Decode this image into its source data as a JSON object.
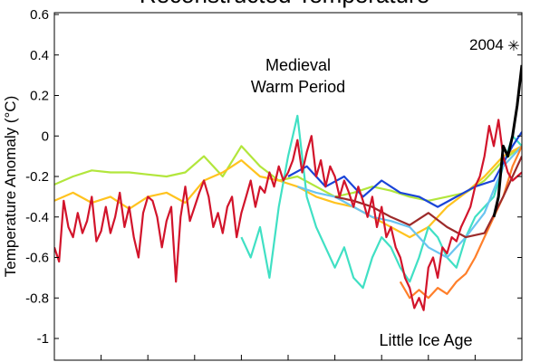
{
  "chart_data": {
    "type": "line",
    "title": "Reconstructed Temperature",
    "ylabel": "Temperature Anomaly (°C)",
    "xlabel": "",
    "xlim": [
      0,
      1000
    ],
    "ylim": [
      -1.1,
      0.6
    ],
    "y_ticks": [
      "0.6",
      "0.4",
      "0.2",
      "0",
      "-0.2",
      "-0.4",
      "-0.6",
      "-0.8",
      "-1"
    ],
    "y_tick_values": [
      0.6,
      0.4,
      0.2,
      0.0,
      -0.2,
      -0.4,
      -0.6,
      -0.8,
      -1.0
    ],
    "x_tick_values": [
      0,
      100,
      200,
      300,
      400,
      500,
      600,
      700,
      800,
      900,
      1000
    ],
    "grid": false,
    "annotations": {
      "medieval_line1": "Medieval",
      "medieval_line2": "Warm Period",
      "little_ice_age": "Little Ice Age",
      "marker_label": "2004"
    },
    "marker": {
      "symbol": "✳",
      "x": 1000,
      "y": 0.45
    },
    "series": [
      {
        "color": "#b2e63c",
        "x": [
          0,
          40,
          80,
          120,
          160,
          200,
          240,
          280,
          320,
          360,
          400,
          440,
          480,
          520,
          560,
          600,
          640,
          680,
          720,
          760,
          800,
          840,
          880,
          920,
          960,
          1000
        ],
        "y": [
          -0.24,
          -0.2,
          -0.17,
          -0.18,
          -0.18,
          -0.19,
          -0.2,
          -0.18,
          -0.1,
          -0.2,
          -0.05,
          -0.15,
          -0.22,
          -0.2,
          -0.25,
          -0.3,
          -0.28,
          -0.25,
          -0.27,
          -0.3,
          -0.32,
          -0.3,
          -0.28,
          -0.22,
          -0.12,
          -0.05
        ]
      },
      {
        "color": "#ffc31f",
        "x": [
          0,
          40,
          80,
          120,
          160,
          200,
          240,
          280,
          320,
          360,
          400,
          440,
          480,
          520,
          560,
          600,
          640,
          680,
          720,
          760,
          800,
          840,
          880,
          920,
          960,
          1000
        ],
        "y": [
          -0.32,
          -0.28,
          -0.33,
          -0.3,
          -0.36,
          -0.3,
          -0.28,
          -0.33,
          -0.22,
          -0.18,
          -0.12,
          -0.2,
          -0.22,
          -0.25,
          -0.3,
          -0.33,
          -0.35,
          -0.4,
          -0.45,
          -0.5,
          -0.45,
          -0.35,
          -0.28,
          -0.2,
          -0.1,
          -0.05
        ]
      },
      {
        "color": "#40e0c4",
        "x": [
          400,
          420,
          440,
          460,
          480,
          500,
          520,
          540,
          560,
          580,
          600,
          620,
          640,
          660,
          680,
          700,
          720,
          740,
          760,
          780,
          800,
          820,
          840,
          860,
          880,
          900,
          920,
          940,
          960,
          980,
          1000
        ],
        "y": [
          -0.5,
          -0.6,
          -0.45,
          -0.7,
          -0.35,
          -0.1,
          0.1,
          -0.3,
          -0.45,
          -0.55,
          -0.65,
          -0.55,
          -0.7,
          -0.75,
          -0.6,
          -0.5,
          -0.55,
          -0.65,
          -0.72,
          -0.6,
          -0.45,
          -0.5,
          -0.6,
          -0.65,
          -0.5,
          -0.4,
          -0.35,
          -0.3,
          -0.15,
          0.0,
          -0.05
        ]
      },
      {
        "color": "#1a44d8",
        "x": [
          500,
          540,
          580,
          620,
          660,
          700,
          740,
          780,
          820,
          860,
          900,
          940,
          980,
          1000
        ],
        "y": [
          -0.2,
          -0.15,
          -0.25,
          -0.2,
          -0.3,
          -0.22,
          -0.28,
          -0.3,
          -0.35,
          -0.3,
          -0.25,
          -0.22,
          -0.05,
          0.02
        ]
      },
      {
        "color": "#6ac4f0",
        "x": [
          520,
          560,
          600,
          640,
          680,
          720,
          760,
          800,
          840,
          880,
          920,
          960,
          1000
        ],
        "y": [
          -0.25,
          -0.28,
          -0.3,
          -0.35,
          -0.4,
          -0.42,
          -0.45,
          -0.55,
          -0.6,
          -0.5,
          -0.38,
          -0.15,
          -0.05
        ]
      },
      {
        "color": "#ff7f2a",
        "x": [
          740,
          760,
          780,
          800,
          820,
          840,
          860,
          880,
          900,
          920,
          940,
          960,
          980,
          1000
        ],
        "y": [
          -0.72,
          -0.8,
          -0.76,
          -0.8,
          -0.75,
          -0.78,
          -0.72,
          -0.68,
          -0.6,
          -0.5,
          -0.4,
          -0.3,
          -0.15,
          -0.05
        ]
      },
      {
        "color": "#9c2a2a",
        "x": [
          600,
          640,
          680,
          720,
          760,
          800,
          840,
          880,
          920,
          960,
          1000
        ],
        "y": [
          -0.3,
          -0.32,
          -0.35,
          -0.4,
          -0.44,
          -0.38,
          -0.45,
          -0.5,
          -0.48,
          -0.3,
          -0.1
        ]
      },
      {
        "color": "#d2142b",
        "x": [
          0,
          10,
          20,
          30,
          40,
          50,
          60,
          70,
          80,
          90,
          100,
          110,
          120,
          130,
          140,
          150,
          160,
          170,
          180,
          190,
          200,
          210,
          220,
          230,
          240,
          250,
          260,
          270,
          280,
          290,
          300,
          310,
          320,
          330,
          340,
          350,
          360,
          370,
          380,
          390,
          400,
          410,
          420,
          430,
          440,
          450,
          460,
          470,
          480,
          490,
          500,
          510,
          520,
          530,
          540,
          550,
          560,
          570,
          580,
          590,
          600,
          610,
          620,
          630,
          640,
          650,
          660,
          670,
          680,
          690,
          700,
          710,
          720,
          730,
          740,
          750,
          760,
          770,
          780,
          790,
          800,
          810,
          820,
          830,
          840,
          850,
          860,
          870,
          880,
          890,
          900,
          910,
          920,
          930,
          940,
          950,
          960,
          970,
          980,
          990,
          1000
        ],
        "y": [
          -0.55,
          -0.62,
          -0.32,
          -0.45,
          -0.5,
          -0.38,
          -0.48,
          -0.42,
          -0.3,
          -0.52,
          -0.47,
          -0.35,
          -0.48,
          -0.4,
          -0.28,
          -0.45,
          -0.35,
          -0.5,
          -0.6,
          -0.38,
          -0.3,
          -0.32,
          -0.4,
          -0.55,
          -0.42,
          -0.35,
          -0.72,
          -0.4,
          -0.25,
          -0.42,
          -0.35,
          -0.28,
          -0.22,
          -0.3,
          -0.45,
          -0.38,
          -0.48,
          -0.35,
          -0.3,
          -0.5,
          -0.38,
          -0.3,
          -0.22,
          -0.35,
          -0.25,
          -0.28,
          -0.18,
          -0.25,
          -0.15,
          -0.22,
          -0.18,
          -0.12,
          -0.02,
          -0.18,
          -0.08,
          0.0,
          -0.2,
          -0.12,
          -0.25,
          -0.15,
          -0.2,
          -0.3,
          -0.22,
          -0.28,
          -0.35,
          -0.25,
          -0.32,
          -0.4,
          -0.3,
          -0.45,
          -0.35,
          -0.5,
          -0.45,
          -0.55,
          -0.6,
          -0.7,
          -0.75,
          -0.85,
          -0.8,
          -0.86,
          -0.65,
          -0.6,
          -0.7,
          -0.55,
          -0.58,
          -0.5,
          -0.52,
          -0.45,
          -0.4,
          -0.35,
          -0.25,
          -0.2,
          -0.1,
          0.05,
          -0.05,
          0.08,
          -0.1,
          -0.18,
          -0.22,
          -0.2,
          -0.18
        ]
      },
      {
        "color": "#000000",
        "x": [
          940,
          950,
          960,
          970,
          980,
          990,
          1000
        ],
        "y": [
          -0.4,
          -0.3,
          -0.05,
          -0.1,
          0.0,
          0.15,
          0.35
        ]
      }
    ]
  }
}
